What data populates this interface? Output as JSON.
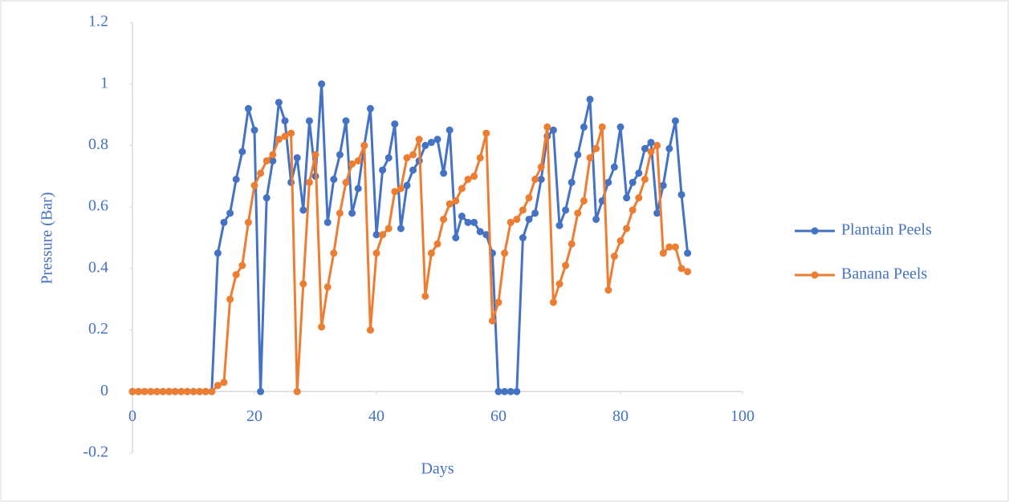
{
  "chart_data": {
    "type": "line",
    "x_label": "Days",
    "y_label": "Pressure (Bar)",
    "x": [
      0,
      1,
      2,
      3,
      4,
      5,
      6,
      7,
      8,
      9,
      10,
      11,
      12,
      13,
      14,
      15,
      16,
      17,
      18,
      19,
      20,
      21,
      22,
      23,
      24,
      25,
      26,
      27,
      28,
      29,
      30,
      31,
      32,
      33,
      34,
      35,
      36,
      37,
      38,
      39,
      40,
      41,
      42,
      43,
      44,
      45,
      46,
      47,
      48,
      49,
      50,
      51,
      52,
      53,
      54,
      55,
      56,
      57,
      58,
      59,
      60,
      61,
      62,
      63,
      64,
      65,
      66,
      67,
      68,
      69,
      70,
      71,
      72,
      73,
      74,
      75,
      76,
      77,
      78,
      79,
      80,
      81,
      82,
      83,
      84,
      85,
      86,
      87,
      88,
      89,
      90,
      91
    ],
    "series": [
      {
        "name": "Plantain Peels",
        "color": "#4472c4",
        "values": [
          0,
          0,
          0,
          0,
          0,
          0,
          0,
          0,
          0,
          0,
          0,
          0,
          0,
          0,
          0.45,
          0.55,
          0.58,
          0.69,
          0.78,
          0.92,
          0.85,
          0,
          0.63,
          0.75,
          0.94,
          0.88,
          0.68,
          0.76,
          0.59,
          0.88,
          0.7,
          1.0,
          0.55,
          0.69,
          0.77,
          0.88,
          0.58,
          0.66,
          0.8,
          0.92,
          0.51,
          0.72,
          0.76,
          0.87,
          0.53,
          0.67,
          0.72,
          0.75,
          0.8,
          0.81,
          0.82,
          0.71,
          0.85,
          0.5,
          0.57,
          0.55,
          0.55,
          0.52,
          0.51,
          0.45,
          0,
          0,
          0,
          0,
          0.5,
          0.56,
          0.58,
          0.69,
          0.83,
          0.85,
          0.54,
          0.59,
          0.68,
          0.77,
          0.86,
          0.95,
          0.56,
          0.62,
          0.68,
          0.73,
          0.86,
          0.63,
          0.68,
          0.71,
          0.79,
          0.81,
          0.58,
          0.67,
          0.79,
          0.88,
          0.64,
          0.45
        ]
      },
      {
        "name": "Banana Peels",
        "color": "#ed7d31",
        "values": [
          0,
          0,
          0,
          0,
          0,
          0,
          0,
          0,
          0,
          0,
          0,
          0,
          0,
          0,
          0.02,
          0.03,
          0.3,
          0.38,
          0.41,
          0.55,
          0.67,
          0.71,
          0.75,
          0.77,
          0.82,
          0.83,
          0.84,
          0,
          0.35,
          0.68,
          0.77,
          0.21,
          0.34,
          0.45,
          0.58,
          0.68,
          0.74,
          0.75,
          0.8,
          0.2,
          0.45,
          0.51,
          0.53,
          0.65,
          0.66,
          0.76,
          0.77,
          0.82,
          0.31,
          0.45,
          0.48,
          0.56,
          0.61,
          0.62,
          0.66,
          0.69,
          0.7,
          0.76,
          0.84,
          0.23,
          0.29,
          0.45,
          0.55,
          0.56,
          0.59,
          0.63,
          0.69,
          0.73,
          0.86,
          0.29,
          0.35,
          0.41,
          0.48,
          0.58,
          0.62,
          0.76,
          0.79,
          0.86,
          0.33,
          0.44,
          0.49,
          0.53,
          0.59,
          0.63,
          0.69,
          0.78,
          0.8,
          0.45,
          0.47,
          0.47,
          0.4,
          0.39
        ]
      }
    ],
    "xlim": [
      0,
      100
    ],
    "xticks": [
      0,
      20,
      40,
      60,
      80,
      100
    ],
    "ylim": [
      -0.2,
      1.2
    ],
    "yticks": [
      -0.2,
      0,
      0.2,
      0.4,
      0.6,
      0.8,
      1,
      1.2
    ],
    "grid": false,
    "legend": "right"
  }
}
